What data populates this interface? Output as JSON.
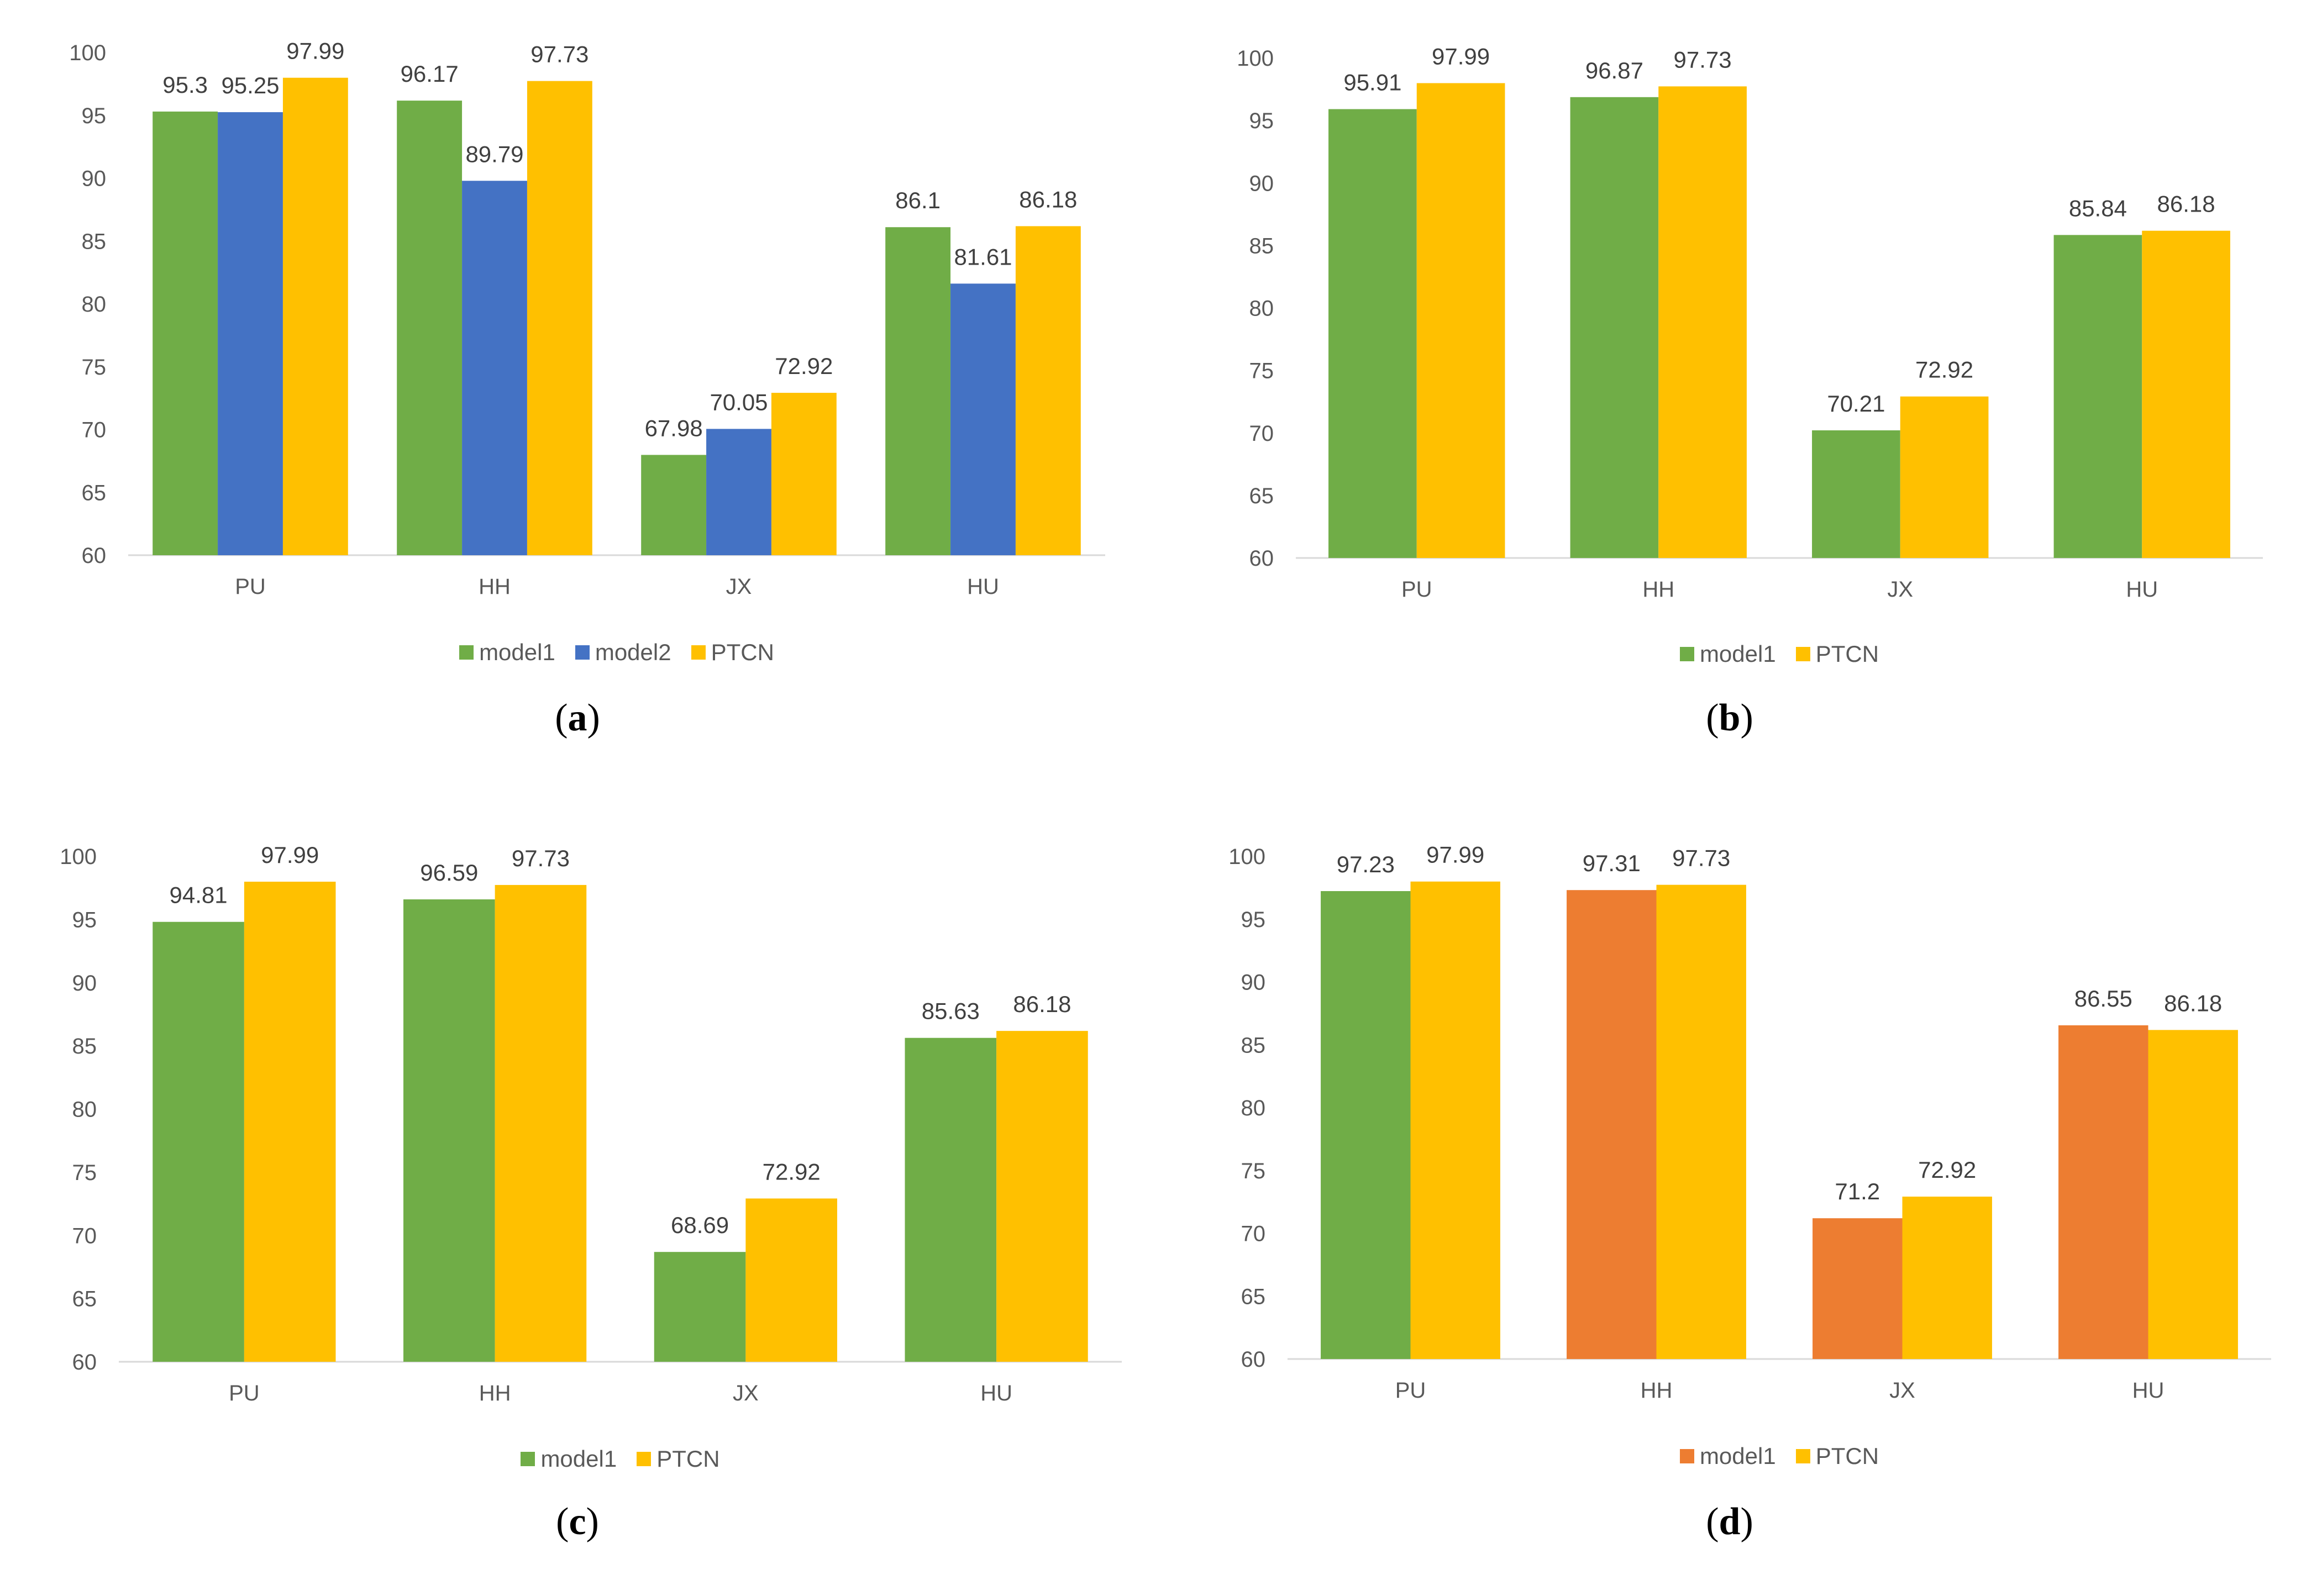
{
  "colors": {
    "model1_green": "#70AD47",
    "model1_orange": "#ED7D31",
    "model2_blue": "#4472C4",
    "ptcn_gold": "#FFC000",
    "axis": "#D9D9D9",
    "text": "#595959"
  },
  "chart_data": [
    {
      "type": "bar",
      "panel": "a",
      "caption": "a",
      "categories": [
        "PU",
        "HH",
        "JX",
        "HU"
      ],
      "ylim": [
        60,
        100
      ],
      "yticks": [
        60,
        65,
        70,
        75,
        80,
        85,
        90,
        95,
        100
      ],
      "series": [
        {
          "name": "model1",
          "values": [
            95.3,
            96.17,
            67.98,
            86.1
          ],
          "colors": [
            "#70AD47",
            "#70AD47",
            "#70AD47",
            "#70AD47"
          ]
        },
        {
          "name": "model2",
          "values": [
            95.25,
            89.79,
            70.05,
            81.61
          ],
          "colors": [
            "#4472C4",
            "#4472C4",
            "#4472C4",
            "#4472C4"
          ]
        },
        {
          "name": "PTCN",
          "values": [
            97.99,
            97.73,
            72.92,
            86.18
          ],
          "colors": [
            "#FFC000",
            "#FFC000",
            "#FFC000",
            "#FFC000"
          ]
        }
      ],
      "legend": [
        {
          "label": "model1",
          "color": "#70AD47"
        },
        {
          "label": "model2",
          "color": "#4472C4"
        },
        {
          "label": "PTCN",
          "color": "#FFC000"
        }
      ]
    },
    {
      "type": "bar",
      "panel": "b",
      "caption": "b",
      "categories": [
        "PU",
        "HH",
        "JX",
        "HU"
      ],
      "ylim": [
        60,
        100
      ],
      "yticks": [
        60,
        65,
        70,
        75,
        80,
        85,
        90,
        95,
        100
      ],
      "series": [
        {
          "name": "model1",
          "values": [
            95.91,
            96.87,
            70.21,
            85.84
          ],
          "colors": [
            "#70AD47",
            "#70AD47",
            "#70AD47",
            "#70AD47"
          ]
        },
        {
          "name": "PTCN",
          "values": [
            97.99,
            97.73,
            72.92,
            86.18
          ],
          "colors": [
            "#FFC000",
            "#FFC000",
            "#FFC000",
            "#FFC000"
          ]
        }
      ],
      "legend": [
        {
          "label": "model1",
          "color": "#70AD47"
        },
        {
          "label": "PTCN",
          "color": "#FFC000"
        }
      ]
    },
    {
      "type": "bar",
      "panel": "c",
      "caption": "c",
      "categories": [
        "PU",
        "HH",
        "JX",
        "HU"
      ],
      "ylim": [
        60,
        100
      ],
      "yticks": [
        60,
        65,
        70,
        75,
        80,
        85,
        90,
        95,
        100
      ],
      "series": [
        {
          "name": "model1",
          "values": [
            94.81,
            96.59,
            68.69,
            85.63
          ],
          "colors": [
            "#70AD47",
            "#70AD47",
            "#70AD47",
            "#70AD47"
          ]
        },
        {
          "name": "PTCN",
          "values": [
            97.99,
            97.73,
            72.92,
            86.18
          ],
          "colors": [
            "#FFC000",
            "#FFC000",
            "#FFC000",
            "#FFC000"
          ]
        }
      ],
      "legend": [
        {
          "label": "model1",
          "color": "#70AD47"
        },
        {
          "label": "PTCN",
          "color": "#FFC000"
        }
      ]
    },
    {
      "type": "bar",
      "panel": "d",
      "caption": "d",
      "categories": [
        "PU",
        "HH",
        "JX",
        "HU"
      ],
      "ylim": [
        60,
        100
      ],
      "yticks": [
        60,
        65,
        70,
        75,
        80,
        85,
        90,
        95,
        100
      ],
      "series": [
        {
          "name": "model1",
          "values": [
            97.23,
            97.31,
            71.2,
            86.55
          ],
          "colors": [
            "#70AD47",
            "#ED7D31",
            "#ED7D31",
            "#ED7D31"
          ]
        },
        {
          "name": "PTCN",
          "values": [
            97.99,
            97.73,
            72.92,
            86.18
          ],
          "colors": [
            "#FFC000",
            "#FFC000",
            "#FFC000",
            "#FFC000"
          ]
        }
      ],
      "legend": [
        {
          "label": "model1",
          "color": "#ED7D31"
        },
        {
          "label": "PTCN",
          "color": "#FFC000"
        }
      ]
    }
  ]
}
